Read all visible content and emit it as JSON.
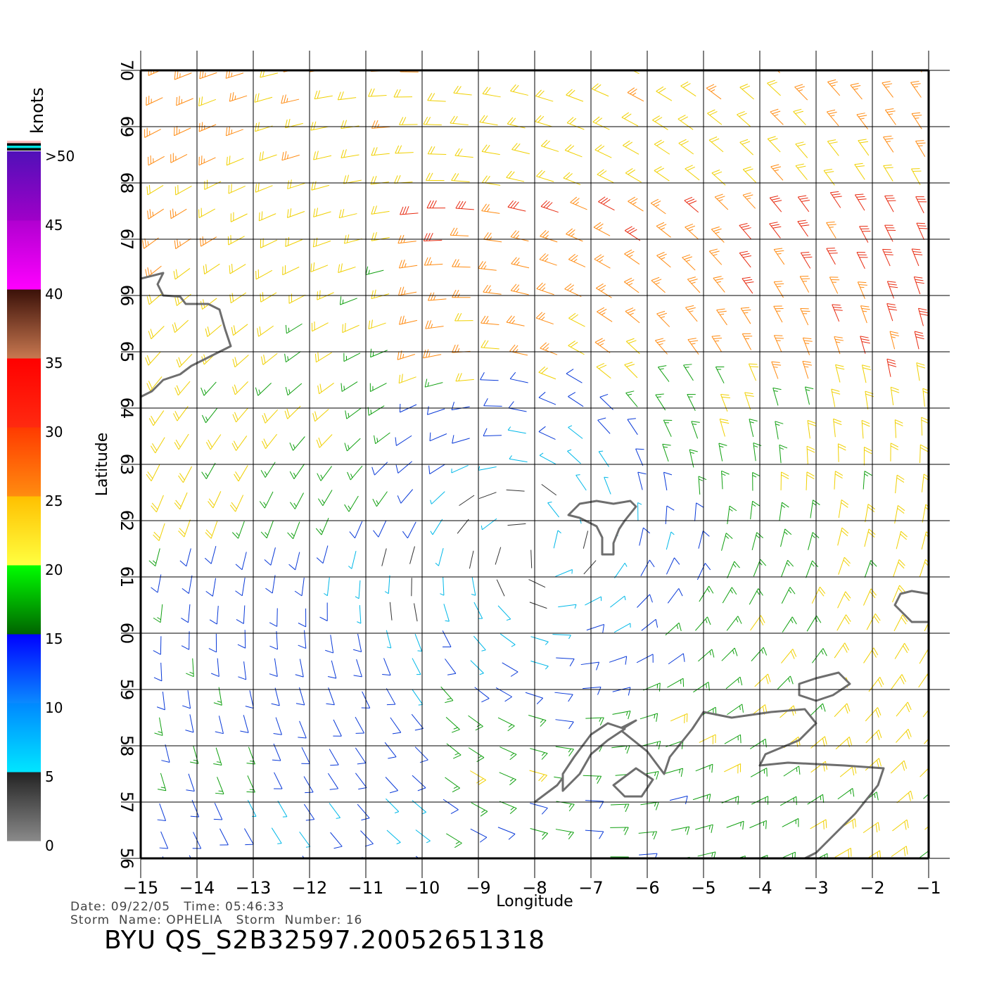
{
  "map": {
    "lon_range": [
      -15,
      -1
    ],
    "lat_range": [
      56,
      70
    ],
    "lon_ticks": [
      -15,
      -14,
      -13,
      -12,
      -11,
      -10,
      -9,
      -8,
      -7,
      -6,
      -5,
      -4,
      -3,
      -2,
      -1
    ],
    "lat_ticks": [
      56,
      57,
      58,
      59,
      60,
      61,
      62,
      63,
      64,
      65,
      66,
      67,
      68,
      69,
      70
    ],
    "lon_tick_labels": [
      "−15",
      "−14",
      "−13",
      "−12",
      "−11",
      "−10",
      "−9",
      "−8",
      "−7",
      "−6",
      "−5",
      "−4",
      "−3",
      "−2",
      "−1"
    ],
    "lat_tick_labels": [
      "56",
      "57",
      "58",
      "59",
      "60",
      "61",
      "62",
      "63",
      "64",
      "65",
      "66",
      "67",
      "68",
      "69",
      "70"
    ],
    "xlabel": "Longitude",
    "ylabel": "Latitude",
    "grid": true,
    "coastline_color": "#6e6e6e",
    "storm_center": {
      "lon": -8.0,
      "lat": 61.5
    }
  },
  "colorbar": {
    "title": "knots",
    "tick_labels": [
      ">50",
      "45",
      "40",
      "35",
      "30",
      "25",
      "20",
      "15",
      "10",
      "5",
      "0"
    ],
    "bands": [
      {
        "from": 0,
        "to": 5,
        "colors": [
          "#8a8a8a",
          "#222222"
        ]
      },
      {
        "from": 5,
        "to": 10,
        "colors": [
          "#00e6ff",
          "#0088ff"
        ]
      },
      {
        "from": 10,
        "to": 15,
        "colors": [
          "#0a8aff",
          "#0000ff"
        ]
      },
      {
        "from": 15,
        "to": 20,
        "colors": [
          "#006400",
          "#00ff00"
        ]
      },
      {
        "from": 20,
        "to": 25,
        "colors": [
          "#ffff40",
          "#ffc000"
        ]
      },
      {
        "from": 25,
        "to": 30,
        "colors": [
          "#ff8c10",
          "#ff3a00"
        ]
      },
      {
        "from": 30,
        "to": 35,
        "colors": [
          "#ff2a10",
          "#ff0000"
        ]
      },
      {
        "from": 35,
        "to": 40,
        "colors": [
          "#c87850",
          "#3a1008"
        ]
      },
      {
        "from": 40,
        "to": 45,
        "colors": [
          "#ff00ff",
          "#b000d0"
        ]
      },
      {
        "from": 45,
        "to": 50,
        "colors": [
          "#a000c8",
          "#5010b8"
        ]
      }
    ],
    "top_stripes": [
      "#ffc0c0",
      "#000000",
      "#00e0e0",
      "#000000"
    ]
  },
  "info": {
    "line1": "Date: 09/22/05   Time: 05:46:33",
    "line2": "Storm  Name: OPHELIA   Storm  Number: 16",
    "product_id": "BYU  QS_S2B32597.20052651318"
  }
}
